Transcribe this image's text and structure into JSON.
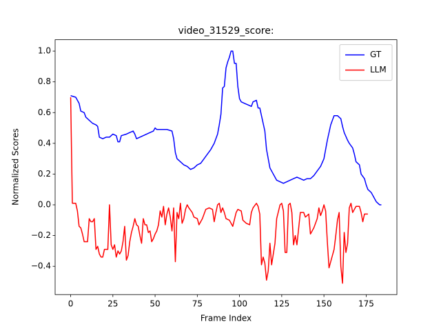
{
  "chart_data": {
    "type": "line",
    "title": "video_31529_score:",
    "xlabel": "Frame Index",
    "ylabel": "Normalized Scores",
    "xlim": [
      -9.2,
      193.2
    ],
    "ylim": [
      -0.584,
      1.074
    ],
    "xticks": [
      0,
      25,
      50,
      75,
      100,
      125,
      150,
      175
    ],
    "yticks": [
      {
        "value": -0.4,
        "label": "−0.4"
      },
      {
        "value": -0.2,
        "label": "−0.2"
      },
      {
        "value": 0,
        "label": "0.0"
      },
      0.2,
      0.4,
      0.6,
      0.8,
      {
        "value": 1,
        "label": "1.0"
      }
    ],
    "legend": "upper right",
    "series": [
      {
        "name": "GT",
        "color": "#0000ff",
        "x": [
          0,
          3,
          5,
          6,
          8,
          9,
          11,
          13,
          15,
          16,
          17,
          19,
          21,
          23,
          25,
          27,
          28,
          29,
          30,
          33,
          35,
          37,
          38,
          39,
          41,
          43,
          45,
          47,
          49,
          50,
          51,
          53,
          55,
          57,
          60,
          61,
          62,
          63,
          65,
          67,
          69,
          71,
          73,
          75,
          77,
          79,
          81,
          83,
          85,
          87,
          88,
          89,
          90,
          91,
          92,
          93,
          94,
          95,
          96,
          97,
          98,
          99,
          100,
          101,
          103,
          105,
          107,
          108,
          110,
          111,
          112,
          113,
          115,
          116,
          117,
          118,
          120,
          122,
          124,
          126,
          128,
          130,
          132,
          134,
          136,
          138,
          140,
          142,
          144,
          146,
          148,
          150,
          151,
          152,
          153,
          154,
          155,
          156,
          158,
          160,
          161,
          162,
          164,
          165,
          167,
          168,
          169,
          171,
          172,
          174,
          175,
          176,
          178,
          180,
          181,
          182,
          183,
          184
        ],
        "values": [
          0.71,
          0.7,
          0.66,
          0.61,
          0.6,
          0.57,
          0.55,
          0.53,
          0.52,
          0.51,
          0.44,
          0.43,
          0.44,
          0.44,
          0.46,
          0.45,
          0.41,
          0.41,
          0.45,
          0.46,
          0.47,
          0.48,
          0.46,
          0.43,
          0.44,
          0.45,
          0.46,
          0.47,
          0.48,
          0.5,
          0.49,
          0.49,
          0.49,
          0.49,
          0.48,
          0.43,
          0.34,
          0.3,
          0.28,
          0.26,
          0.25,
          0.23,
          0.24,
          0.26,
          0.27,
          0.3,
          0.33,
          0.36,
          0.4,
          0.46,
          0.52,
          0.59,
          0.76,
          0.77,
          0.89,
          0.93,
          0.96,
          1.0,
          1.0,
          0.92,
          0.92,
          0.77,
          0.69,
          0.67,
          0.66,
          0.65,
          0.64,
          0.67,
          0.68,
          0.63,
          0.63,
          0.58,
          0.48,
          0.36,
          0.3,
          0.24,
          0.2,
          0.16,
          0.15,
          0.14,
          0.15,
          0.16,
          0.17,
          0.18,
          0.17,
          0.16,
          0.17,
          0.17,
          0.19,
          0.22,
          0.25,
          0.3,
          0.36,
          0.42,
          0.47,
          0.52,
          0.55,
          0.58,
          0.58,
          0.56,
          0.51,
          0.47,
          0.42,
          0.4,
          0.37,
          0.33,
          0.28,
          0.26,
          0.2,
          0.17,
          0.13,
          0.1,
          0.08,
          0.04,
          0.02,
          0.01,
          0.0,
          0.0
        ]
      },
      {
        "name": "LLM",
        "color": "#ff0000",
        "x": [
          0,
          1,
          2,
          3,
          4,
          5,
          6,
          7,
          8,
          9,
          10,
          11,
          12,
          13,
          14,
          15,
          16,
          17,
          18,
          19,
          20,
          22,
          23,
          24,
          25,
          26,
          27,
          28,
          29,
          30,
          31,
          32,
          33,
          34,
          35,
          36,
          37,
          38,
          39,
          40,
          41,
          42,
          43,
          44,
          45,
          46,
          47,
          48,
          49,
          50,
          51,
          52,
          53,
          54,
          55,
          56,
          57,
          58,
          59,
          60,
          61,
          62,
          63,
          64,
          65,
          66,
          67,
          68,
          69,
          70,
          72,
          73,
          75,
          76,
          78,
          80,
          82,
          84,
          85,
          86,
          87,
          88,
          89,
          90,
          91,
          92,
          94,
          96,
          98,
          99,
          101,
          102,
          104,
          106,
          107,
          108,
          110,
          111,
          112,
          113,
          114,
          115,
          116,
          117,
          118,
          119,
          120,
          121,
          122,
          124,
          125,
          126,
          127,
          128,
          129,
          130,
          131,
          132,
          133,
          134,
          136,
          138,
          139,
          140,
          141,
          142,
          144,
          146,
          147,
          148,
          149,
          150,
          151,
          152,
          153,
          155,
          156,
          157,
          158,
          159,
          160,
          161,
          162,
          163,
          164,
          165,
          166,
          167,
          168,
          169,
          171,
          172,
          173,
          174,
          176
        ],
        "values": [
          0.7,
          0.01,
          0.01,
          0.01,
          -0.04,
          -0.14,
          -0.15,
          -0.19,
          -0.24,
          -0.24,
          -0.24,
          -0.09,
          -0.11,
          -0.11,
          -0.09,
          -0.29,
          -0.27,
          -0.32,
          -0.34,
          -0.34,
          -0.29,
          -0.29,
          0.0,
          -0.26,
          -0.29,
          -0.26,
          -0.34,
          -0.3,
          -0.32,
          -0.3,
          -0.24,
          -0.14,
          -0.36,
          -0.33,
          -0.24,
          -0.18,
          -0.14,
          -0.09,
          -0.13,
          -0.14,
          -0.2,
          -0.25,
          -0.09,
          -0.13,
          -0.13,
          -0.18,
          -0.17,
          -0.24,
          -0.22,
          -0.19,
          -0.17,
          -0.13,
          -0.04,
          -0.08,
          -0.01,
          -0.13,
          -0.06,
          -0.02,
          -0.08,
          -0.17,
          -0.02,
          -0.37,
          -0.05,
          -0.09,
          0.01,
          -0.12,
          -0.09,
          -0.03,
          0.0,
          -0.02,
          -0.05,
          -0.08,
          -0.09,
          -0.13,
          -0.09,
          -0.03,
          -0.02,
          -0.03,
          -0.11,
          -0.05,
          0.0,
          0.01,
          -0.05,
          -0.02,
          -0.05,
          -0.09,
          -0.1,
          -0.14,
          -0.05,
          -0.03,
          -0.04,
          -0.1,
          -0.12,
          -0.13,
          -0.05,
          -0.02,
          0.01,
          -0.01,
          -0.06,
          -0.39,
          -0.34,
          -0.38,
          -0.49,
          -0.43,
          -0.25,
          -0.39,
          -0.32,
          -0.25,
          -0.09,
          0.0,
          0.01,
          -0.04,
          -0.31,
          -0.31,
          0.0,
          0.01,
          -0.05,
          -0.26,
          -0.2,
          -0.26,
          -0.05,
          -0.05,
          -0.08,
          -0.07,
          -0.06,
          -0.19,
          -0.15,
          -0.09,
          -0.02,
          -0.07,
          -0.04,
          0.0,
          -0.04,
          -0.24,
          -0.41,
          -0.33,
          -0.29,
          -0.2,
          -0.1,
          -0.05,
          -0.4,
          -0.51,
          -0.18,
          -0.31,
          -0.25,
          -0.02,
          0.01,
          -0.05,
          -0.03,
          -0.01,
          -0.01,
          -0.05,
          -0.11,
          -0.06,
          -0.06
        ]
      }
    ]
  }
}
